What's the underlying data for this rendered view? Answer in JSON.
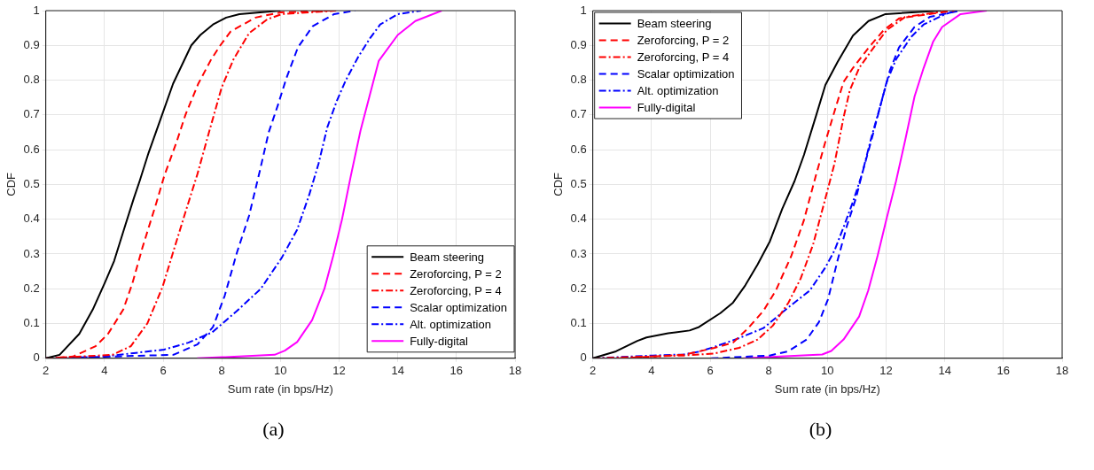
{
  "chart_data": [
    {
      "type": "line",
      "xlabel": "Sum rate (in bps/Hz)",
      "ylabel": "CDF",
      "xlim": [
        2,
        18
      ],
      "xticks": [
        2,
        4,
        6,
        8,
        10,
        12,
        14,
        16,
        18
      ],
      "ylim": [
        0,
        1
      ],
      "yticks": [
        0,
        0.1,
        0.2,
        0.3,
        0.4,
        0.5,
        0.6,
        0.7,
        0.8,
        0.9,
        1
      ],
      "grid": true,
      "legend": "bottom right",
      "marker": "none",
      "annotations": [
        "(a)"
      ],
      "series": [
        {
          "name": "Beam steering",
          "color": "#000000",
          "line_style": "solid",
          "x": [
            2,
            2.47,
            3.14,
            3.6,
            4.0,
            4.33,
            4.7,
            5.0,
            5.2,
            5.5,
            5.88,
            6.34,
            6.96,
            7.27,
            7.7,
            8.15,
            8.6,
            10
          ],
          "values": [
            0,
            0.01,
            0.07,
            0.14,
            0.215,
            0.28,
            0.38,
            0.46,
            0.51,
            0.59,
            0.68,
            0.79,
            0.9,
            0.93,
            0.96,
            0.98,
            0.99,
            1
          ]
        },
        {
          "name": "Zeroforcing, P = 2",
          "color": "#ff0000",
          "line_style": "dashed",
          "x": [
            2,
            2.93,
            3.7,
            4.12,
            4.64,
            4.95,
            5.3,
            5.78,
            6.04,
            6.45,
            6.76,
            7.2,
            7.64,
            7.95,
            8.3,
            9.15,
            10,
            11.8
          ],
          "values": [
            0,
            0.005,
            0.035,
            0.07,
            0.14,
            0.215,
            0.32,
            0.45,
            0.525,
            0.62,
            0.7,
            0.79,
            0.86,
            0.9,
            0.94,
            0.98,
            0.995,
            1
          ]
        },
        {
          "name": "Zeroforcing, P = 4",
          "color": "#ff0000",
          "line_style": "dashdot",
          "x": [
            2,
            4.27,
            4.9,
            5.46,
            5.98,
            6.34,
            6.76,
            7.17,
            7.53,
            8.0,
            8.4,
            8.93,
            9.55,
            10.05,
            11.9
          ],
          "values": [
            0,
            0.01,
            0.035,
            0.1,
            0.205,
            0.305,
            0.42,
            0.53,
            0.64,
            0.78,
            0.86,
            0.935,
            0.975,
            0.99,
            1
          ]
        },
        {
          "name": "Scalar optimization",
          "color": "#0000ff",
          "line_style": "dashed",
          "x": [
            2,
            6.35,
            7.17,
            7.7,
            8.1,
            8.52,
            8.93,
            9.3,
            9.6,
            9.92,
            10.2,
            10.6,
            11.1,
            11.83,
            12.55
          ],
          "values": [
            0,
            0.01,
            0.04,
            0.09,
            0.18,
            0.305,
            0.41,
            0.54,
            0.65,
            0.73,
            0.805,
            0.895,
            0.955,
            0.99,
            1
          ]
        },
        {
          "name": "Alt. optimization",
          "color": "#0000ff",
          "line_style": "dashdot",
          "x": [
            2,
            3.96,
            5.0,
            6.03,
            6.86,
            7.68,
            8.5,
            9.33,
            10.05,
            10.57,
            10.98,
            11.3,
            11.6,
            11.92,
            12.23,
            12.64,
            13.05,
            13.4,
            14.0,
            14.8
          ],
          "values": [
            0,
            0.005,
            0.015,
            0.025,
            0.045,
            0.075,
            0.135,
            0.2,
            0.29,
            0.37,
            0.47,
            0.56,
            0.665,
            0.74,
            0.8,
            0.865,
            0.92,
            0.96,
            0.99,
            1
          ]
        },
        {
          "name": "Fully-digital",
          "color": "#ff00ff",
          "line_style": "solid",
          "x": [
            7.16,
            9.8,
            10.15,
            10.57,
            11.08,
            11.5,
            11.8,
            12.1,
            12.4,
            12.73,
            13.04,
            13.35,
            14.0,
            14.6,
            15.5
          ],
          "values": [
            0,
            0.01,
            0.022,
            0.047,
            0.11,
            0.2,
            0.295,
            0.4,
            0.525,
            0.655,
            0.755,
            0.855,
            0.93,
            0.97,
            1
          ]
        }
      ]
    },
    {
      "type": "line",
      "xlabel": "Sum rate (in bps/Hz)",
      "ylabel": "CDF",
      "xlim": [
        2,
        18
      ],
      "xticks": [
        2,
        4,
        6,
        8,
        10,
        12,
        14,
        16,
        18
      ],
      "ylim": [
        0,
        1
      ],
      "yticks": [
        0,
        0.1,
        0.2,
        0.3,
        0.4,
        0.5,
        0.6,
        0.7,
        0.8,
        0.9,
        1
      ],
      "grid": true,
      "legend": "top left",
      "marker": "none",
      "annotations": [
        "(b)"
      ],
      "series": [
        {
          "name": "Beam steering",
          "color": "#000000",
          "line_style": "solid",
          "x": [
            2,
            2.79,
            3.52,
            3.83,
            4.57,
            5.3,
            5.62,
            6.35,
            6.78,
            7.2,
            7.62,
            8.04,
            8.46,
            8.88,
            9.2,
            9.62,
            9.93,
            10.35,
            10.87,
            11.4,
            11.98,
            13.86
          ],
          "values": [
            0,
            0.02,
            0.05,
            0.06,
            0.072,
            0.08,
            0.09,
            0.13,
            0.16,
            0.21,
            0.27,
            0.337,
            0.43,
            0.51,
            0.585,
            0.7,
            0.786,
            0.853,
            0.928,
            0.97,
            0.99,
            1
          ]
        },
        {
          "name": "Zeroforcing, P = 2",
          "color": "#ff0000",
          "line_style": "dashed",
          "x": [
            2.9,
            5.1,
            6.15,
            6.78,
            7.3,
            7.82,
            8.24,
            8.77,
            9.19,
            9.61,
            9.92,
            10.24,
            10.55,
            10.87,
            11.4,
            11.92,
            12.45,
            14.33
          ],
          "values": [
            0,
            0.01,
            0.03,
            0.045,
            0.087,
            0.137,
            0.195,
            0.295,
            0.395,
            0.527,
            0.62,
            0.71,
            0.795,
            0.835,
            0.893,
            0.944,
            0.978,
            1
          ]
        },
        {
          "name": "Zeroforcing, P = 4",
          "color": "#ff0000",
          "line_style": "dashdot",
          "x": [
            2,
            5.1,
            6.15,
            6.99,
            7.62,
            8.14,
            8.67,
            9.09,
            9.51,
            9.93,
            10.24,
            10.55,
            10.76,
            11.08,
            11.5,
            12.02,
            12.65,
            14.2
          ],
          "values": [
            0,
            0.008,
            0.014,
            0.03,
            0.054,
            0.094,
            0.16,
            0.23,
            0.327,
            0.46,
            0.56,
            0.693,
            0.77,
            0.835,
            0.885,
            0.944,
            0.982,
            1
          ]
        },
        {
          "name": "Scalar optimization",
          "color": "#0000ff",
          "line_style": "dashed",
          "x": [
            6.04,
            8.03,
            8.66,
            9.29,
            9.71,
            10.02,
            10.34,
            10.66,
            10.97,
            11.18,
            11.5,
            11.81,
            12.13,
            12.44,
            12.97,
            13.49,
            14.54
          ],
          "values": [
            0,
            0.008,
            0.02,
            0.054,
            0.104,
            0.17,
            0.28,
            0.38,
            0.46,
            0.53,
            0.628,
            0.728,
            0.828,
            0.894,
            0.953,
            0.982,
            1
          ]
        },
        {
          "name": "Alt. optimization",
          "color": "#0000ff",
          "line_style": "dashdot",
          "x": [
            2,
            4.05,
            5.1,
            5.62,
            6.15,
            6.99,
            7.82,
            8.66,
            9.4,
            9.92,
            10.24,
            10.55,
            10.87,
            11.18,
            11.5,
            11.81,
            12.02,
            12.34,
            12.86,
            13.28,
            14.02,
            14.4
          ],
          "values": [
            0,
            0.008,
            0.011,
            0.019,
            0.033,
            0.058,
            0.087,
            0.146,
            0.195,
            0.26,
            0.31,
            0.377,
            0.45,
            0.53,
            0.636,
            0.728,
            0.795,
            0.86,
            0.925,
            0.96,
            0.99,
            1
          ]
        },
        {
          "name": "Fully-digital",
          "color": "#ff00ff",
          "line_style": "solid",
          "x": [
            7.14,
            9.82,
            10.13,
            10.55,
            11.08,
            11.39,
            11.71,
            12.02,
            12.34,
            12.65,
            12.97,
            13.28,
            13.6,
            13.91,
            14.54,
            15.43
          ],
          "values": [
            0,
            0.011,
            0.021,
            0.054,
            0.12,
            0.195,
            0.295,
            0.403,
            0.51,
            0.627,
            0.753,
            0.835,
            0.91,
            0.953,
            0.99,
            1
          ]
        }
      ]
    }
  ]
}
